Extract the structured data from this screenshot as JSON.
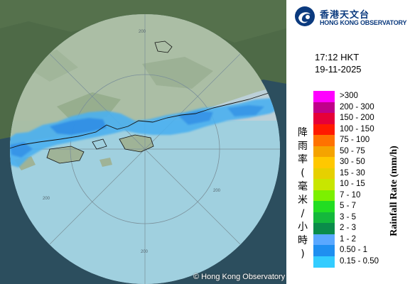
{
  "map": {
    "copyright": "© Hong Kong Observatory",
    "range_ring_labels": [
      "200",
      "200",
      "200",
      "200"
    ],
    "colors": {
      "sea_outside": "#2c4e5e",
      "land_outside": "#4e6a47",
      "radar_disc": "#bcd0d8",
      "sea_inside": "#9bd0e0",
      "rain_light": "#4bb0f0",
      "rain_medium": "#2f8de6",
      "coastline": "#111111",
      "ring_line": "#7a8f99"
    }
  },
  "logo": {
    "name_zh": "香港天文台",
    "name_en": "HONG KONG OBSERVATORY",
    "icon": "hko-logo-icon"
  },
  "timestamp": {
    "time": "17:12 HKT",
    "date": "19-11-2025"
  },
  "legend": {
    "title_zh": "降雨率(毫米/小時)",
    "title_en": "Rainfall Rate (mm/h)",
    "items": [
      {
        "label": ">300",
        "color": "#ff00ff"
      },
      {
        "label": "200 - 300",
        "color": "#c0008a"
      },
      {
        "label": "150 - 200",
        "color": "#e60038"
      },
      {
        "label": "100 - 150",
        "color": "#ff1a00"
      },
      {
        "label": "75 - 100",
        "color": "#ff7200"
      },
      {
        "label": "50 - 75",
        "color": "#f5a300"
      },
      {
        "label": "30 - 50",
        "color": "#ffc800"
      },
      {
        "label": "15 - 30",
        "color": "#e6d000"
      },
      {
        "label": "10 - 15",
        "color": "#c8e600"
      },
      {
        "label": "7 - 10",
        "color": "#7cf000"
      },
      {
        "label": "5 - 7",
        "color": "#22dd22"
      },
      {
        "label": "3 - 5",
        "color": "#14b83c"
      },
      {
        "label": "2 - 3",
        "color": "#0a8c4a"
      },
      {
        "label": "1 - 2",
        "color": "#5aa8ff"
      },
      {
        "label": "0.50 - 1",
        "color": "#1f8ff0"
      },
      {
        "label": "0.15 - 0.50",
        "color": "#33ccff"
      }
    ]
  }
}
